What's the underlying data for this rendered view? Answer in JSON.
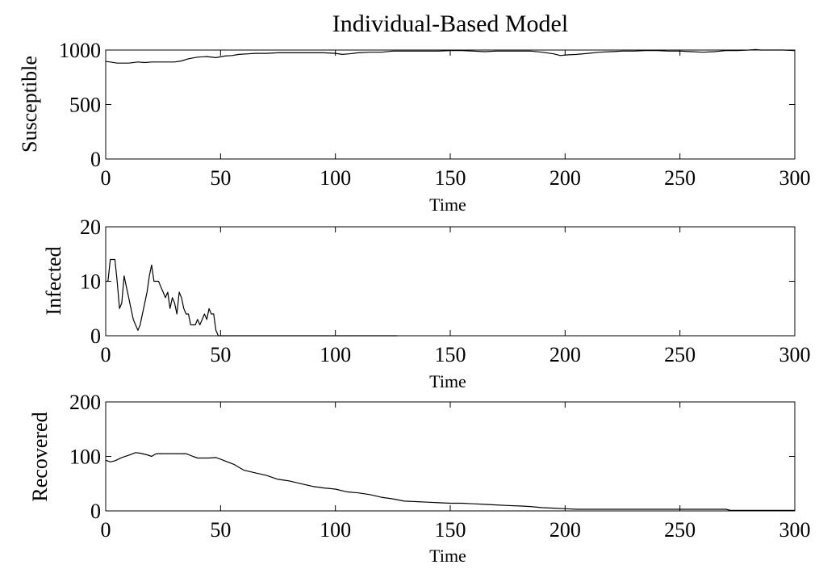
{
  "title": "Individual-Based Model",
  "chart_data": [
    {
      "type": "line",
      "xlabel": "Time",
      "ylabel": "Susceptible",
      "xlim": [
        0,
        300
      ],
      "ylim": [
        0,
        1000
      ],
      "xticks": [
        0,
        50,
        100,
        150,
        200,
        250,
        300
      ],
      "yticks": [
        0,
        500,
        1000
      ],
      "grid": false,
      "x": [
        0,
        2,
        5,
        10,
        14,
        17,
        20,
        25,
        30,
        33,
        36,
        40,
        44,
        48,
        52,
        55,
        58,
        62,
        65,
        70,
        75,
        80,
        85,
        90,
        95,
        100,
        103,
        106,
        110,
        115,
        120,
        125,
        130,
        135,
        140,
        145,
        150,
        155,
        160,
        165,
        170,
        175,
        180,
        185,
        190,
        195,
        198,
        200,
        205,
        210,
        215,
        220,
        225,
        230,
        235,
        240,
        245,
        250,
        255,
        260,
        265,
        270,
        275,
        280,
        283,
        285,
        290,
        295,
        300
      ],
      "y": [
        895,
        890,
        880,
        880,
        890,
        885,
        890,
        890,
        890,
        900,
        920,
        935,
        940,
        930,
        945,
        950,
        960,
        965,
        970,
        970,
        975,
        975,
        975,
        975,
        975,
        970,
        960,
        965,
        975,
        980,
        980,
        990,
        990,
        990,
        990,
        990,
        995,
        995,
        990,
        985,
        990,
        990,
        990,
        990,
        980,
        965,
        950,
        955,
        960,
        970,
        980,
        985,
        990,
        990,
        995,
        995,
        990,
        990,
        985,
        980,
        985,
        995,
        995,
        1000,
        1005,
        1000,
        1000,
        1000,
        995
      ]
    },
    {
      "type": "line",
      "xlabel": "Time",
      "ylabel": "Infected",
      "xlim": [
        0,
        300
      ],
      "ylim": [
        0,
        20
      ],
      "xticks": [
        0,
        50,
        100,
        150,
        200,
        250,
        300
      ],
      "yticks": [
        0,
        10,
        20
      ],
      "grid": false,
      "x": [
        0,
        1,
        2,
        3,
        4,
        5,
        6,
        7,
        8,
        9,
        10,
        11,
        12,
        13,
        14,
        15,
        16,
        17,
        18,
        19,
        20,
        21,
        22,
        23,
        24,
        25,
        26,
        27,
        28,
        29,
        30,
        31,
        32,
        33,
        34,
        35,
        36,
        37,
        38,
        39,
        40,
        41,
        42,
        43,
        44,
        45,
        46,
        47,
        48,
        49,
        50,
        60,
        80,
        100,
        120,
        127
      ],
      "y": [
        10,
        10,
        14,
        14,
        14,
        10,
        5,
        6,
        11,
        9,
        7,
        5,
        3,
        2,
        1,
        2,
        4,
        6,
        8,
        11,
        13,
        10,
        10,
        10,
        9,
        8,
        7,
        8,
        5,
        7,
        6,
        4,
        8,
        7,
        5,
        4,
        4,
        2,
        2,
        2,
        3,
        2,
        3,
        4,
        3,
        5,
        4,
        4,
        1,
        0,
        0,
        0,
        0,
        0,
        0,
        0
      ]
    },
    {
      "type": "line",
      "xlabel": "Time",
      "ylabel": "Recovered",
      "xlim": [
        0,
        300
      ],
      "ylim": [
        0,
        200
      ],
      "xticks": [
        0,
        50,
        100,
        150,
        200,
        250,
        300
      ],
      "yticks": [
        0,
        100,
        200
      ],
      "grid": false,
      "x": [
        0,
        2,
        4,
        7,
        10,
        13,
        15,
        18,
        20,
        22,
        25,
        30,
        35,
        38,
        40,
        43,
        45,
        48,
        50,
        53,
        56,
        60,
        65,
        70,
        75,
        80,
        85,
        90,
        95,
        100,
        105,
        110,
        115,
        120,
        125,
        130,
        135,
        140,
        145,
        150,
        155,
        160,
        165,
        170,
        175,
        180,
        185,
        190,
        195,
        200,
        205,
        210,
        220,
        230,
        240,
        250,
        260,
        270,
        272,
        275,
        280,
        290,
        300
      ],
      "y": [
        93,
        90,
        92,
        98,
        102,
        107,
        106,
        103,
        100,
        105,
        105,
        105,
        105,
        100,
        97,
        97,
        97,
        98,
        95,
        90,
        85,
        75,
        70,
        65,
        58,
        55,
        50,
        45,
        42,
        40,
        35,
        33,
        30,
        25,
        22,
        18,
        17,
        16,
        15,
        14,
        14,
        13,
        12,
        11,
        10,
        9,
        8,
        6,
        5,
        4,
        3,
        3,
        3,
        3,
        3,
        3,
        3,
        3,
        1,
        1,
        1,
        1,
        1
      ]
    }
  ]
}
